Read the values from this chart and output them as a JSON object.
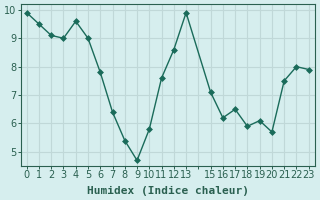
{
  "x": [
    0,
    1,
    2,
    3,
    4,
    5,
    6,
    7,
    8,
    9,
    10,
    11,
    12,
    13,
    15,
    16,
    17,
    18,
    19,
    20,
    21,
    22,
    23
  ],
  "y": [
    9.9,
    9.5,
    9.1,
    9.0,
    9.6,
    9.0,
    7.8,
    6.4,
    5.4,
    4.7,
    5.8,
    7.6,
    8.6,
    9.9,
    7.1,
    6.2,
    6.5,
    5.9,
    6.1,
    5.7,
    7.5,
    8.0,
    7.9
  ],
  "line_color": "#1a6b5a",
  "marker": "D",
  "marker_size": 3,
  "bg_color": "#d6eeee",
  "grid_color": "#c0d8d8",
  "xlabel": "Humidex (Indice chaleur)",
  "ylim": [
    4.5,
    10.2
  ],
  "xlim": [
    -0.5,
    23.5
  ],
  "yticks": [
    5,
    6,
    7,
    8,
    9,
    10
  ],
  "xticks": [
    0,
    1,
    2,
    3,
    4,
    5,
    6,
    7,
    8,
    9,
    10,
    11,
    12,
    13,
    14,
    15,
    16,
    17,
    18,
    19,
    20,
    21,
    22,
    23
  ],
  "xtick_labels": [
    "0",
    "1",
    "2",
    "3",
    "4",
    "5",
    "6",
    "7",
    "8",
    "9",
    "10",
    "11",
    "12",
    "13",
    "",
    "15",
    "16",
    "17",
    "18",
    "19",
    "20",
    "21",
    "22",
    "23"
  ],
  "tick_color": "#2a6050",
  "axis_color": "#2a6050",
  "label_fontsize": 8,
  "tick_fontsize": 7
}
